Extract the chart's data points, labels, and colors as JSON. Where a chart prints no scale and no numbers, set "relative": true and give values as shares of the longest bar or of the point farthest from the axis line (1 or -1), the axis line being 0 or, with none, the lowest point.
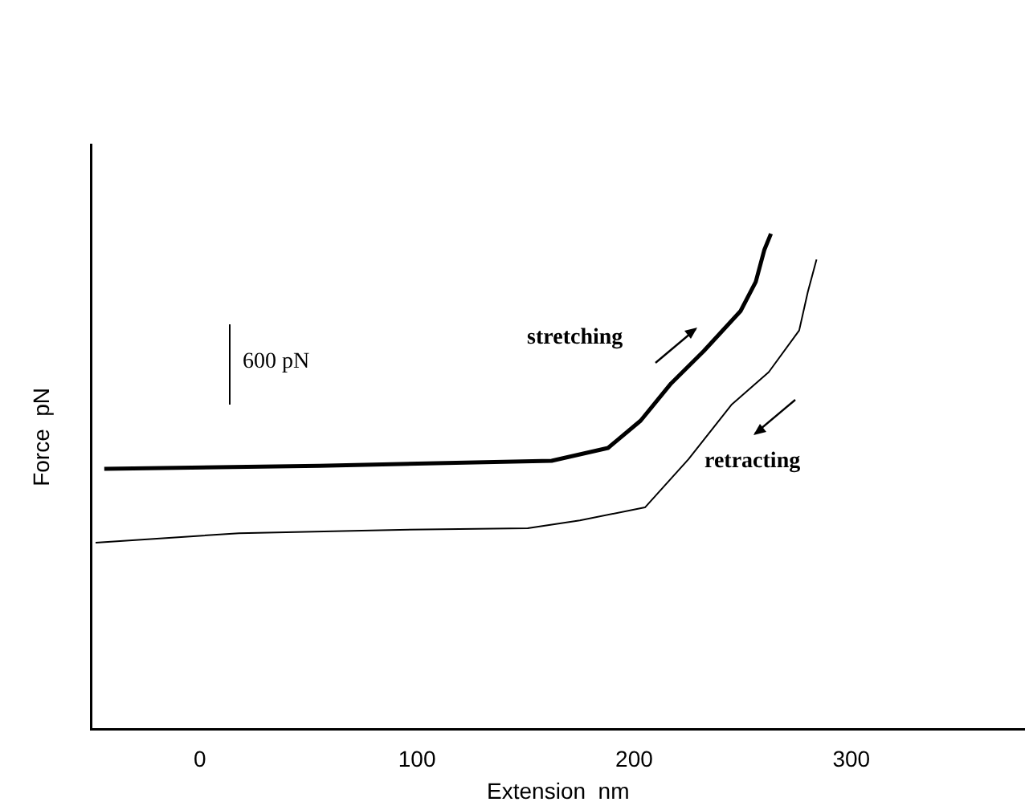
{
  "chart_data": {
    "type": "line",
    "xlabel": "Extension  nm",
    "ylabel": "Force  pN",
    "relative": true,
    "xlim": [
      -50,
      380
    ],
    "xticks": [
      0,
      100,
      200,
      300
    ],
    "grid": false,
    "marker": "none",
    "line_style": "solid",
    "annotations": [
      "600 pN"
    ],
    "series": [
      {
        "name": "stretching",
        "color": "#000000",
        "x": [
          -44,
          55,
          162,
          188,
          203,
          217,
          232,
          249,
          256,
          260,
          263
        ],
        "values": [
          0.526,
          0.532,
          0.542,
          0.568,
          0.623,
          0.698,
          0.763,
          0.844,
          0.903,
          0.968,
          1.0
        ]
      },
      {
        "name": "retracting",
        "color": "#000000",
        "x": [
          -48,
          18,
          92,
          151,
          175,
          205,
          225,
          245,
          262,
          276,
          280,
          284
        ],
        "values": [
          0.377,
          0.396,
          0.403,
          0.406,
          0.422,
          0.448,
          0.545,
          0.656,
          0.721,
          0.805,
          0.883,
          0.948
        ]
      }
    ]
  }
}
